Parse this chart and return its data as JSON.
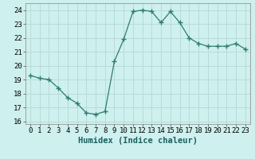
{
  "x": [
    0,
    1,
    2,
    3,
    4,
    5,
    6,
    7,
    8,
    9,
    10,
    11,
    12,
    13,
    14,
    15,
    16,
    17,
    18,
    19,
    20,
    21,
    22,
    23
  ],
  "y": [
    19.3,
    19.1,
    19.0,
    18.4,
    17.7,
    17.3,
    16.6,
    16.5,
    16.7,
    20.3,
    21.9,
    23.9,
    24.0,
    23.9,
    23.1,
    23.9,
    23.1,
    22.0,
    21.6,
    21.4,
    21.4,
    21.4,
    21.6,
    21.2
  ],
  "line_color": "#2d7d6e",
  "marker": "+",
  "marker_size": 4,
  "marker_lw": 1.0,
  "background_color": "#cef0ee",
  "grid_color": "#b8dada",
  "xlabel": "Humidex (Indice chaleur)",
  "xlim": [
    -0.5,
    23.5
  ],
  "ylim": [
    15.8,
    24.5
  ],
  "yticks": [
    16,
    17,
    18,
    19,
    20,
    21,
    22,
    23,
    24
  ],
  "xticks": [
    0,
    1,
    2,
    3,
    4,
    5,
    6,
    7,
    8,
    9,
    10,
    11,
    12,
    13,
    14,
    15,
    16,
    17,
    18,
    19,
    20,
    21,
    22,
    23
  ],
  "tick_fontsize": 6.5,
  "label_fontsize": 7.5
}
